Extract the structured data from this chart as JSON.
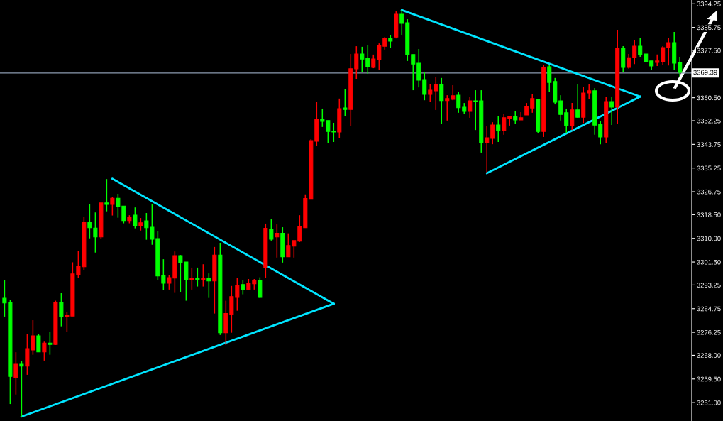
{
  "chart_data": {
    "type": "candlestick",
    "categories": [
      null,
      null,
      null,
      null,
      null,
      null,
      null,
      null,
      null,
      null,
      null,
      null,
      null,
      null,
      null,
      null,
      null,
      null,
      null,
      null,
      null,
      null,
      null,
      null,
      null,
      null,
      null,
      null,
      null,
      null,
      null,
      null,
      null,
      null,
      null,
      null,
      null,
      null,
      null,
      null,
      null,
      null,
      null,
      null,
      null,
      null,
      null,
      null,
      null,
      null,
      null,
      null,
      null,
      null,
      null,
      null,
      null,
      null,
      null,
      null,
      null,
      null,
      null,
      null,
      null,
      null,
      null,
      null,
      null,
      null,
      null,
      null,
      null,
      null,
      null,
      null,
      null,
      null,
      null,
      null,
      null,
      null,
      null,
      null,
      null,
      null,
      null,
      null,
      null,
      null,
      null,
      null,
      null,
      null,
      null,
      null,
      null,
      null,
      null,
      null,
      null,
      null,
      null,
      null,
      null,
      null,
      null,
      null,
      null,
      null,
      null,
      null,
      null,
      null,
      null,
      null,
      null,
      null,
      null,
      null
    ],
    "ylim": [
      3244.4,
      3395.6
    ],
    "tick_labels": "y",
    "grid": false,
    "legend": false,
    "yticks": [
      {
        "value": 3251,
        "label": "3251.00"
      },
      {
        "value": 3259.5,
        "label": "3259.50"
      },
      {
        "value": 3268,
        "label": "3268.00"
      },
      {
        "value": 3276.25,
        "label": "3276.25"
      },
      {
        "value": 3284.75,
        "label": "3284.75"
      },
      {
        "value": 3293.25,
        "label": "3293.25"
      },
      {
        "value": 3301.5,
        "label": "3301.50"
      },
      {
        "value": 3310,
        "label": "3310.00"
      },
      {
        "value": 3318.5,
        "label": "3318.50"
      },
      {
        "value": 3326.75,
        "label": "3326.75"
      },
      {
        "value": 3335.25,
        "label": "3335.25"
      },
      {
        "value": 3343.75,
        "label": "3343.75"
      },
      {
        "value": 3352.25,
        "label": "3352.25"
      },
      {
        "value": 3360.5,
        "label": "3360.50"
      },
      {
        "value": 3377.5,
        "label": "3377.50"
      },
      {
        "value": 3385.75,
        "label": "3385.75"
      },
      {
        "value": 3394.25,
        "label": "3394.25"
      }
    ],
    "ref_lines": [
      {
        "axis": "y",
        "value": 3369.39,
        "label": "3369.39",
        "color": "#8c9bb0"
      }
    ],
    "series": [
      {
        "type": "candlestick",
        "ohlc": [
          [
            3288.5,
            3294.9,
            3281.9,
            3286.8
          ],
          [
            3287.0,
            3288.0,
            3250.5,
            3260.4
          ],
          [
            3260.0,
            3269.1,
            3253.9,
            3264.8
          ],
          [
            3264.8,
            3266.0,
            3246.0,
            3264.1
          ],
          [
            3264.1,
            3275.7,
            3261.0,
            3270.4
          ],
          [
            3269.9,
            3280.6,
            3268.2,
            3275.0
          ],
          [
            3275.0,
            3275.7,
            3269.2,
            3269.2
          ],
          [
            3269.2,
            3272.9,
            3266.1,
            3272.4
          ],
          [
            3272.4,
            3276.5,
            3268.2,
            3271.9
          ],
          [
            3271.9,
            3287.6,
            3271.7,
            3287.0
          ],
          [
            3287.0,
            3290.3,
            3278.4,
            3281.9
          ],
          [
            3281.9,
            3283.4,
            3276.3,
            3282.4
          ],
          [
            3282.1,
            3301.4,
            3282.1,
            3297.2
          ],
          [
            3297.0,
            3305.6,
            3295.7,
            3300.0
          ],
          [
            3299.8,
            3317.8,
            3298.5,
            3315.8
          ],
          [
            3315.8,
            3322.2,
            3310.0,
            3313.8
          ],
          [
            3313.7,
            3319.3,
            3304.9,
            3310.5
          ],
          [
            3310.5,
            3322.7,
            3309.7,
            3322.7
          ],
          [
            3322.7,
            3331.3,
            3319.7,
            3322.2
          ],
          [
            3322.2,
            3324.8,
            3318.2,
            3324.4
          ],
          [
            3324.4,
            3326.0,
            3317.4,
            3321.5
          ],
          [
            3321.6,
            3321.6,
            3315.4,
            3316.4
          ],
          [
            3316.4,
            3318.3,
            3315.4,
            3317.6
          ],
          [
            3318.3,
            3321.1,
            3313.6,
            3314.6
          ],
          [
            3314.6,
            3317.3,
            3312.8,
            3315.6
          ],
          [
            3316.3,
            3319.1,
            3309.5,
            3313.8
          ],
          [
            3314.0,
            3322.4,
            3307.7,
            3309.7
          ],
          [
            3309.9,
            3312.5,
            3295.0,
            3296.5
          ],
          [
            3296.7,
            3302.5,
            3291.4,
            3293.9
          ],
          [
            3293.9,
            3296.7,
            3291.6,
            3295.9
          ],
          [
            3295.7,
            3305.3,
            3290.4,
            3303.8
          ],
          [
            3303.8,
            3304.0,
            3290.6,
            3301.3
          ],
          [
            3301.5,
            3301.5,
            3287.6,
            3295.0
          ],
          [
            3295.0,
            3299.5,
            3291.6,
            3295.5
          ],
          [
            3295.7,
            3299.5,
            3292.7,
            3295.2
          ],
          [
            3295.2,
            3300.7,
            3292.7,
            3295.7
          ],
          [
            3295.7,
            3297.4,
            3288.6,
            3294.7
          ],
          [
            3294.7,
            3306.9,
            3283.0,
            3304.0
          ],
          [
            3304.0,
            3308.4,
            3275.3,
            3276.1
          ],
          [
            3276.1,
            3287.6,
            3271.7,
            3283.0
          ],
          [
            3282.7,
            3292.9,
            3276.1,
            3289.1
          ],
          [
            3288.8,
            3295.9,
            3284.0,
            3293.2
          ],
          [
            3293.4,
            3294.9,
            3289.9,
            3291.6
          ],
          [
            3291.6,
            3295.4,
            3291.4,
            3293.7
          ],
          [
            3293.7,
            3295.4,
            3291.6,
            3295.0
          ],
          [
            3295.0,
            3296.0,
            3288.6,
            3288.8
          ],
          [
            3299.5,
            3315.3,
            3295.7,
            3313.6
          ],
          [
            3313.3,
            3316.8,
            3309.2,
            3309.7
          ],
          [
            3310.5,
            3315.0,
            3303.1,
            3311.8
          ],
          [
            3311.8,
            3314.0,
            3301.3,
            3303.4
          ],
          [
            3303.4,
            3311.8,
            3303.4,
            3307.4
          ],
          [
            3307.2,
            3309.2,
            3303.1,
            3309.2
          ],
          [
            3309.0,
            3318.3,
            3308.7,
            3314.1
          ],
          [
            3313.8,
            3325.8,
            3313.8,
            3324.3
          ],
          [
            3324.0,
            3345.6,
            3324.0,
            3345.1
          ],
          [
            3344.9,
            3359.1,
            3343.2,
            3352.8
          ],
          [
            3352.8,
            3356.6,
            3350.0,
            3352.0
          ],
          [
            3352.3,
            3352.3,
            3344.3,
            3348.4
          ],
          [
            3348.4,
            3351.5,
            3344.6,
            3348.2
          ],
          [
            3348.2,
            3360.2,
            3345.9,
            3356.6
          ],
          [
            3356.8,
            3363.7,
            3353.8,
            3356.3
          ],
          [
            3356.3,
            3376.2,
            3350.2,
            3370.9
          ],
          [
            3370.9,
            3379.0,
            3367.3,
            3376.2
          ],
          [
            3376.2,
            3378.8,
            3369.6,
            3374.4
          ],
          [
            3374.7,
            3379.5,
            3369.1,
            3371.6
          ],
          [
            3371.4,
            3376.0,
            3371.1,
            3374.4
          ],
          [
            3374.2,
            3380.0,
            3370.6,
            3379.3
          ],
          [
            3379.0,
            3382.3,
            3377.8,
            3381.8
          ],
          [
            3381.8,
            3382.9,
            3378.3,
            3380.8
          ],
          [
            3382.3,
            3391.5,
            3381.8,
            3390.5
          ],
          [
            3390.5,
            3392.0,
            3382.9,
            3387.2
          ],
          [
            3387.4,
            3388.7,
            3373.7,
            3376.0
          ],
          [
            3376.0,
            3376.0,
            3363.2,
            3372.6
          ],
          [
            3372.9,
            3378.0,
            3364.2,
            3366.8
          ],
          [
            3367.0,
            3369.6,
            3359.6,
            3361.7
          ],
          [
            3361.7,
            3365.3,
            3358.9,
            3363.2
          ],
          [
            3363.0,
            3367.8,
            3356.1,
            3365.3
          ],
          [
            3365.3,
            3367.6,
            3351.0,
            3359.5
          ],
          [
            3359.5,
            3361.4,
            3352.3,
            3360.2
          ],
          [
            3359.9,
            3365.0,
            3359.6,
            3361.2
          ],
          [
            3361.4,
            3362.7,
            3355.1,
            3356.9
          ],
          [
            3357.1,
            3358.6,
            3354.8,
            3355.6
          ],
          [
            3355.6,
            3360.7,
            3353.3,
            3359.4
          ],
          [
            3359.4,
            3363.2,
            3348.9,
            3359.1
          ],
          [
            3359.4,
            3363.2,
            3340.8,
            3344.3
          ],
          [
            3344.3,
            3350.2,
            3333.4,
            3346.1
          ],
          [
            3345.9,
            3351.7,
            3343.8,
            3350.7
          ],
          [
            3350.7,
            3353.8,
            3344.6,
            3348.7
          ],
          [
            3348.7,
            3354.8,
            3347.2,
            3353.3
          ],
          [
            3353.0,
            3354.0,
            3350.5,
            3353.8
          ],
          [
            3353.8,
            3355.6,
            3351.2,
            3352.5
          ],
          [
            3352.5,
            3355.3,
            3352.5,
            3353.3
          ],
          [
            3354.3,
            3358.6,
            3354.3,
            3357.4
          ],
          [
            3356.8,
            3361.7,
            3355.1,
            3360.2
          ],
          [
            3359.9,
            3359.9,
            3347.9,
            3348.4
          ],
          [
            3348.4,
            3372.4,
            3346.4,
            3371.4
          ],
          [
            3371.6,
            3372.4,
            3362.7,
            3366.0
          ],
          [
            3366.3,
            3367.6,
            3358.1,
            3358.9
          ],
          [
            3359.4,
            3361.4,
            3352.3,
            3354.5
          ],
          [
            3355.1,
            3356.6,
            3347.9,
            3350.5
          ],
          [
            3350.5,
            3358.6,
            3348.9,
            3356.1
          ],
          [
            3356.1,
            3365.3,
            3353.3,
            3353.5
          ],
          [
            3353.5,
            3364.5,
            3351.4,
            3362.2
          ],
          [
            3362.2,
            3365.3,
            3359.9,
            3363.0
          ],
          [
            3363.0,
            3364.0,
            3347.2,
            3350.7
          ],
          [
            3351.0,
            3352.0,
            3343.8,
            3346.4
          ],
          [
            3346.4,
            3360.9,
            3344.3,
            3359.1
          ],
          [
            3359.1,
            3360.9,
            3350.7,
            3357.1
          ],
          [
            3357.1,
            3384.9,
            3351.0,
            3378.3
          ],
          [
            3378.3,
            3379.0,
            3369.6,
            3371.4
          ],
          [
            3371.4,
            3376.2,
            3370.9,
            3374.9
          ],
          [
            3374.9,
            3381.1,
            3372.6,
            3379.0
          ],
          [
            3379.0,
            3382.1,
            3375.2,
            3376.0
          ],
          [
            3376.2,
            3376.2,
            3373.4,
            3373.4
          ],
          [
            3373.7,
            3373.7,
            3370.6,
            3371.9
          ],
          [
            3373.2,
            3376.0,
            3371.9,
            3373.7
          ],
          [
            3373.4,
            3379.0,
            3372.4,
            3378.5
          ],
          [
            3378.5,
            3381.8,
            3372.1,
            3380.3
          ],
          [
            3380.3,
            3384.1,
            3370.4,
            3372.9
          ],
          [
            3373.2,
            3375.2,
            3368.1,
            3369.6
          ]
        ],
        "colors": [
          "#00ff00",
          "#00ff00",
          "#ff0000",
          "#00ff00",
          "#ff0000",
          "#ff0000",
          "#00ff00",
          "#ff0000",
          "#00ff00",
          "#ff0000",
          "#00ff00",
          "#ff0000",
          "#ff0000",
          "#ff0000",
          "#ff0000",
          "#00ff00",
          "#00ff00",
          "#ff0000",
          "#00ff00",
          "#ff0000",
          "#00ff00",
          "#00ff00",
          "#ff0000",
          "#00ff00",
          "#ff0000",
          "#00ff00",
          "#00ff00",
          "#00ff00",
          "#00ff00",
          "#ff0000",
          "#ff0000",
          "#00ff00",
          "#00ff00",
          "#ff0000",
          "#00ff00",
          "#ff0000",
          "#00ff00",
          "#ff0000",
          "#00ff00",
          "#ff0000",
          "#ff0000",
          "#ff0000",
          "#00ff00",
          "#ff0000",
          "#ff0000",
          "#00ff00",
          "#ff0000",
          "#00ff00",
          "#ff0000",
          "#00ff00",
          "#ff0000",
          "#ff0000",
          "#ff0000",
          "#ff0000",
          "#ff0000",
          "#ff0000",
          "#00ff00",
          "#00ff00",
          "#00ff00",
          "#ff0000",
          "#00ff00",
          "#ff0000",
          "#ff0000",
          "#00ff00",
          "#00ff00",
          "#ff0000",
          "#ff0000",
          "#ff0000",
          "#00ff00",
          "#ff0000",
          "#00ff00",
          "#00ff00",
          "#00ff00",
          "#00ff00",
          "#00ff00",
          "#ff0000",
          "#ff0000",
          "#00ff00",
          "#ff0000",
          "#ff0000",
          "#00ff00",
          "#00ff00",
          "#ff0000",
          "#00ff00",
          "#00ff00",
          "#ff0000",
          "#ff0000",
          "#00ff00",
          "#ff0000",
          "#ff0000",
          "#00ff00",
          "#ff0000",
          "#ff0000",
          "#ff0000",
          "#00ff00",
          "#ff0000",
          "#00ff00",
          "#00ff00",
          "#00ff00",
          "#00ff00",
          "#ff0000",
          "#00ff00",
          "#ff0000",
          "#ff0000",
          "#00ff00",
          "#00ff00",
          "#ff0000",
          "#00ff00",
          "#ff0000",
          "#00ff00",
          "#ff0000",
          "#ff0000",
          "#00ff00",
          "#00ff00",
          "#00ff00",
          "#ff0000",
          "#ff0000",
          "#ff0000",
          "#00ff00",
          "#00ff00"
        ]
      },
      {
        "type": "line",
        "values": [
          null,
          null,
          null,
          null,
          null,
          null,
          null,
          null,
          null,
          null,
          null,
          null,
          null,
          null,
          null,
          null,
          null,
          null,
          null,
          3331.4,
          null,
          null,
          null,
          null,
          null,
          null,
          null,
          null,
          null,
          null,
          null,
          null,
          null,
          null,
          null,
          null,
          null,
          null,
          null,
          null,
          null,
          null,
          null,
          null,
          null,
          null,
          null,
          null,
          null,
          null,
          null,
          null,
          null,
          null,
          null,
          null,
          null,
          null,
          3286.5,
          null,
          null,
          null,
          null,
          null,
          null,
          null,
          null,
          null,
          null,
          null,
          null,
          null,
          null,
          null,
          null,
          null,
          null,
          null,
          null,
          null,
          null,
          null,
          null,
          null,
          null,
          null,
          null,
          null,
          null,
          null,
          null,
          null,
          null,
          null,
          null,
          null,
          null,
          null,
          null,
          null,
          null,
          null,
          null,
          null,
          null,
          null,
          null,
          null,
          null,
          null,
          null,
          null,
          null,
          null,
          null,
          null,
          null,
          null,
          null,
          null
        ],
        "color": "#00e5ff"
      },
      {
        "type": "line",
        "values": [
          null,
          null,
          null,
          3246.0,
          null,
          null,
          null,
          null,
          null,
          null,
          null,
          null,
          null,
          null,
          null,
          null,
          null,
          null,
          null,
          null,
          null,
          null,
          null,
          null,
          null,
          null,
          null,
          null,
          null,
          null,
          null,
          null,
          null,
          null,
          null,
          null,
          null,
          null,
          null,
          null,
          null,
          null,
          null,
          null,
          null,
          null,
          null,
          null,
          null,
          null,
          null,
          null,
          null,
          null,
          null,
          null,
          null,
          null,
          3286.5,
          null,
          null,
          null,
          null,
          null,
          null,
          null,
          null,
          null,
          null,
          null,
          null,
          null,
          null,
          null,
          null,
          null,
          null,
          null,
          null,
          null,
          null,
          null,
          null,
          null,
          null,
          null,
          null,
          null,
          null,
          null,
          null,
          null,
          null,
          null,
          null,
          null,
          null,
          null,
          null,
          null,
          null,
          null,
          null,
          null,
          null,
          null,
          null,
          null,
          null,
          null,
          null,
          null,
          null,
          null,
          null,
          null,
          null,
          null,
          null,
          null
        ],
        "color": "#00e5ff"
      },
      {
        "type": "line",
        "values": [
          null,
          null,
          null,
          null,
          null,
          null,
          null,
          null,
          null,
          null,
          null,
          null,
          null,
          null,
          null,
          null,
          null,
          null,
          null,
          null,
          null,
          null,
          null,
          null,
          null,
          null,
          null,
          null,
          null,
          null,
          null,
          null,
          null,
          null,
          null,
          null,
          null,
          null,
          null,
          null,
          null,
          null,
          null,
          null,
          null,
          null,
          null,
          null,
          null,
          null,
          null,
          null,
          null,
          null,
          null,
          null,
          null,
          null,
          null,
          null,
          null,
          null,
          null,
          null,
          null,
          null,
          null,
          null,
          null,
          null,
          3392.0,
          null,
          null,
          null,
          null,
          null,
          null,
          null,
          null,
          null,
          null,
          null,
          null,
          null,
          null,
          null,
          null,
          null,
          null,
          null,
          null,
          null,
          null,
          null,
          null,
          null,
          null,
          null,
          null,
          null,
          null,
          null,
          null,
          null,
          null,
          null,
          null,
          null,
          null,
          null,
          null,
          null,
          3360.9,
          null,
          null,
          null,
          null,
          null,
          null,
          null
        ],
        "color": "#00e5ff"
      },
      {
        "type": "line",
        "values": [
          null,
          null,
          null,
          null,
          null,
          null,
          null,
          null,
          null,
          null,
          null,
          null,
          null,
          null,
          null,
          null,
          null,
          null,
          null,
          null,
          null,
          null,
          null,
          null,
          null,
          null,
          null,
          null,
          null,
          null,
          null,
          null,
          null,
          null,
          null,
          null,
          null,
          null,
          null,
          null,
          null,
          null,
          null,
          null,
          null,
          null,
          null,
          null,
          null,
          null,
          null,
          null,
          null,
          null,
          null,
          null,
          null,
          null,
          null,
          null,
          null,
          null,
          null,
          null,
          null,
          null,
          null,
          null,
          null,
          null,
          null,
          null,
          null,
          null,
          null,
          null,
          null,
          null,
          null,
          null,
          null,
          null,
          null,
          null,
          null,
          3333.4,
          null,
          null,
          null,
          null,
          null,
          null,
          null,
          null,
          null,
          null,
          null,
          null,
          null,
          null,
          null,
          null,
          null,
          null,
          null,
          null,
          null,
          null,
          null,
          null,
          null,
          null,
          3360.9,
          null,
          null,
          null,
          null,
          null,
          null,
          null
        ],
        "color": "#00e5ff"
      }
    ]
  }
}
